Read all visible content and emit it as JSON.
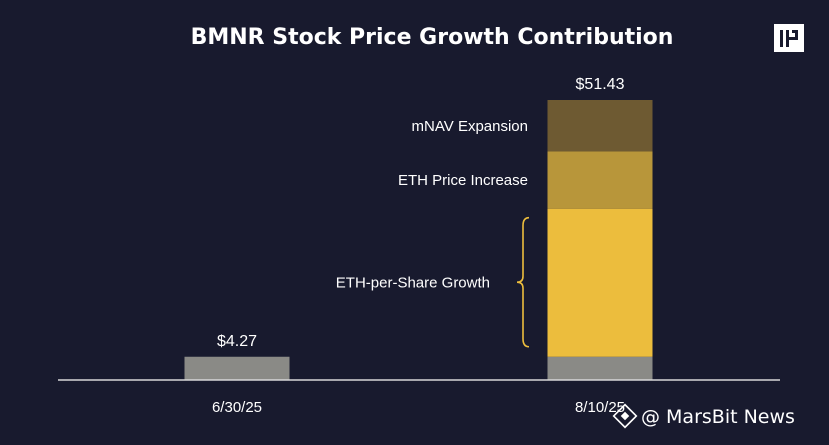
{
  "chart_data": {
    "type": "bar",
    "stacked": true,
    "title": "BMNR Stock Price Growth Contribution",
    "xlabel": "",
    "ylabel": "",
    "categories": [
      "6/30/25",
      "8/10/25"
    ],
    "totals": [
      "$4.27",
      "$51.43"
    ],
    "ylim": [
      0,
      51.43
    ],
    "series": [
      {
        "name": "",
        "values": [
          4.27,
          4.27
        ],
        "color": "#8a8a86"
      },
      {
        "name": "ETH-per-Share Growth",
        "values": [
          0,
          27.2
        ],
        "color": "#ecbd3d"
      },
      {
        "name": "ETH Price Increase",
        "values": [
          0,
          10.5
        ],
        "color": "#b8963a"
      },
      {
        "name": "mNAV Expansion",
        "values": [
          0,
          9.46
        ],
        "color": "#6e5a32"
      }
    ],
    "grid": false,
    "bracket_color": "#ecbd3d"
  },
  "watermark": {
    "text": "@ MarsBit News",
    "icon": "binance-diamond-icon"
  },
  "logo": {
    "icon": "pantera-logo-icon",
    "color": "#ffffff"
  }
}
